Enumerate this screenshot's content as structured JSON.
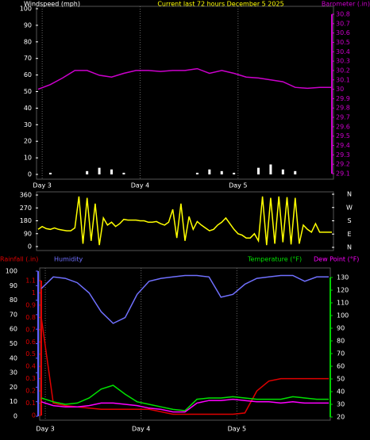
{
  "chart_data": [
    {
      "type": "line",
      "title": "Current last 72 hours December 5 2025",
      "x": [
        0,
        3,
        6,
        9,
        12,
        15,
        18,
        21,
        24,
        27,
        30,
        33,
        36,
        39,
        42,
        45,
        48,
        51,
        54,
        57,
        60,
        63,
        66,
        69,
        72
      ],
      "xlim": [
        0,
        72
      ],
      "xticks": [
        {
          "value": 1,
          "label": "Day 3"
        },
        {
          "value": 25,
          "label": "Day 4"
        },
        {
          "value": 49,
          "label": "Day 5"
        }
      ],
      "ylim": [
        0,
        100
      ],
      "yticks": [
        0,
        10,
        20,
        30,
        40,
        50,
        60,
        70,
        80,
        90,
        100
      ],
      "y2lim": [
        29.1,
        30.8
      ],
      "y2ticks": [
        29.1,
        29.2,
        29.3,
        29.4,
        29.5,
        29.6,
        29.7,
        29.8,
        29.9,
        30,
        30.1,
        30.2,
        30.3,
        30.4,
        30.5,
        30.6,
        30.7,
        30.8
      ],
      "grid": true,
      "series": [
        {
          "name": "Windspeed (mph)",
          "color": "#ffffff",
          "mark": "bar",
          "axis": "y",
          "values": [
            0,
            1,
            0,
            0,
            2,
            4,
            3,
            1,
            0,
            0,
            0,
            0,
            0,
            1,
            3,
            2,
            1,
            0,
            4,
            6,
            3,
            2,
            0,
            0,
            0
          ]
        },
        {
          "name": "Barometer (.in)",
          "color": "#cc00cc",
          "mark": "line",
          "axis": "y2",
          "values": [
            30.0,
            30.05,
            30.12,
            30.2,
            30.2,
            30.15,
            30.13,
            30.17,
            30.2,
            30.2,
            30.19,
            30.2,
            30.2,
            30.22,
            30.17,
            30.2,
            30.17,
            30.13,
            30.12,
            30.1,
            30.08,
            30.02,
            30.01,
            30.02,
            30.02
          ]
        }
      ]
    },
    {
      "type": "line",
      "x": [
        0,
        1,
        2,
        3,
        4,
        5,
        6,
        7,
        8,
        9,
        10,
        11,
        12,
        13,
        14,
        15,
        16,
        17,
        18,
        19,
        20,
        21,
        22,
        23,
        24,
        25,
        26,
        27,
        28,
        29,
        30,
        31,
        32,
        33,
        34,
        35,
        36,
        37,
        38,
        39,
        40,
        41,
        42,
        43,
        44,
        45,
        46,
        47,
        48,
        49,
        50,
        51,
        52,
        53,
        54,
        55,
        56,
        57,
        58,
        59,
        60,
        61,
        62,
        63,
        64,
        65,
        66,
        67,
        68,
        69,
        70,
        71,
        72
      ],
      "xlim": [
        0,
        72
      ],
      "ylim": [
        0,
        360
      ],
      "yticks": [
        0,
        90,
        180,
        270,
        360
      ],
      "y2lim": [
        0,
        360
      ],
      "y2ticks": [
        {
          "value": 0,
          "label": "N"
        },
        {
          "value": 90,
          "label": "E"
        },
        {
          "value": 180,
          "label": "S"
        },
        {
          "value": 270,
          "label": "W"
        },
        {
          "value": 360,
          "label": "N"
        }
      ],
      "series": [
        {
          "color": "#ffff00",
          "mark": "line",
          "axis": "y",
          "values": [
            120,
            140,
            125,
            120,
            130,
            120,
            115,
            110,
            110,
            130,
            350,
            20,
            340,
            40,
            300,
            10,
            200,
            150,
            170,
            140,
            160,
            190,
            185,
            185,
            185,
            180,
            180,
            170,
            170,
            175,
            160,
            150,
            170,
            260,
            60,
            300,
            40,
            210,
            120,
            175,
            150,
            130,
            110,
            120,
            150,
            170,
            200,
            160,
            120,
            90,
            80,
            60,
            60,
            90,
            40,
            350,
            10,
            340,
            20,
            350,
            30,
            345,
            15,
            340,
            20,
            150,
            120,
            100,
            160,
            100,
            100,
            100,
            100
          ]
        }
      ]
    },
    {
      "type": "line",
      "x": [
        0,
        3,
        6,
        9,
        12,
        15,
        18,
        21,
        24,
        27,
        30,
        33,
        36,
        39,
        42,
        45,
        48,
        51,
        54,
        57,
        60,
        63,
        66,
        69,
        72
      ],
      "xlim": [
        0,
        72
      ],
      "xticks": [
        {
          "value": 1,
          "label": "Day 3"
        },
        {
          "value": 25,
          "label": "Day 4"
        },
        {
          "value": 49,
          "label": "Day 5"
        }
      ],
      "ylim": [
        0,
        100
      ],
      "yticks": [
        0,
        10,
        20,
        30,
        40,
        50,
        60,
        70,
        80,
        90,
        100
      ],
      "y2lim": [
        20,
        130
      ],
      "y2ticks": [
        20,
        30,
        40,
        50,
        60,
        70,
        80,
        90,
        100,
        110,
        120,
        130
      ],
      "y3lim": [
        0,
        1.1
      ],
      "y3ticks": [
        0,
        0.1,
        0.2,
        0.3,
        0.4,
        0.5,
        0.6,
        0.7,
        0.8,
        0.9,
        1,
        1.1
      ],
      "grid": true,
      "series": [
        {
          "name": "Rainfall (.in)",
          "color": "#e00000",
          "mark": "line",
          "axis": "y3",
          "values": [
            0.8,
            0.1,
            0.08,
            0.07,
            0.06,
            0.05,
            0.05,
            0.05,
            0.05,
            0.05,
            0.03,
            0.01,
            0.01,
            0.01,
            0.01,
            0.01,
            0.01,
            0.02,
            0.2,
            0.28,
            0.3,
            0.3,
            0.3,
            0.3,
            0.3
          ]
        },
        {
          "name": "Humidity",
          "color": "#7070ff",
          "mark": "line",
          "axis": "y",
          "values": [
            88,
            96,
            95,
            92,
            85,
            72,
            64,
            68,
            84,
            93,
            95,
            96,
            97,
            97,
            96,
            82,
            84,
            91,
            95,
            96,
            97,
            97,
            93,
            96,
            96
          ]
        },
        {
          "name": "Temperature (°F)",
          "color": "#00e000",
          "mark": "line",
          "axis": "y2",
          "values": [
            35,
            32,
            30,
            31,
            35,
            42,
            45,
            38,
            32,
            30,
            28,
            26,
            25,
            34,
            35,
            35,
            36,
            35,
            34,
            34,
            34,
            36,
            35,
            34,
            34
          ]
        },
        {
          "name": "Dew Point (°F)",
          "color": "#ff00ff",
          "mark": "line",
          "axis": "y2",
          "values": [
            32,
            29,
            28,
            28,
            29,
            31,
            31,
            30,
            29,
            27,
            26,
            24,
            24,
            31,
            33,
            33,
            34,
            33,
            32,
            32,
            31,
            32,
            31,
            31,
            31
          ]
        }
      ]
    }
  ]
}
